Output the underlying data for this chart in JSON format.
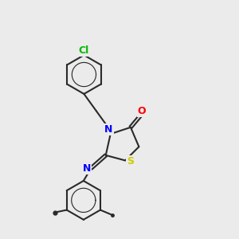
{
  "background_color": "#ebebeb",
  "bond_color": "#2a2a2a",
  "N_color": "#0000ff",
  "O_color": "#ff0000",
  "S_color": "#cccc00",
  "Cl_color": "#00bb00",
  "bond_width": 1.5,
  "dbo": 0.045,
  "xlim": [
    0,
    10
  ],
  "ylim": [
    0,
    10
  ]
}
